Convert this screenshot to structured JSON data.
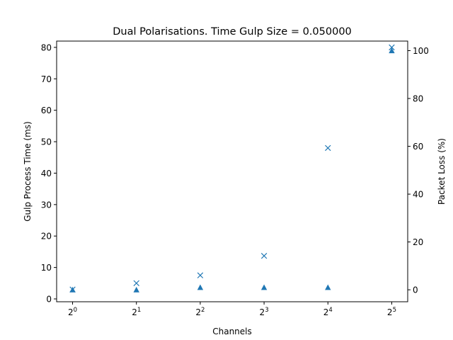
{
  "chart_data": {
    "type": "scatter",
    "title": "Dual Polarisations. Time Gulp Size = 0.050000",
    "xlabel": "Channels",
    "ylabel": "Gulp Process Time (ms)",
    "ylabel_right": "Packet Loss (%)",
    "x_scale": "log2",
    "x": [
      1,
      2,
      4,
      8,
      16,
      32
    ],
    "x_tick_labels": [
      {
        "base": "2",
        "exp": "0"
      },
      {
        "base": "2",
        "exp": "1"
      },
      {
        "base": "2",
        "exp": "2"
      },
      {
        "base": "2",
        "exp": "3"
      },
      {
        "base": "2",
        "exp": "4"
      },
      {
        "base": "2",
        "exp": "5"
      }
    ],
    "y_ticks": [
      "0",
      "10",
      "20",
      "30",
      "40",
      "50",
      "60",
      "70",
      "80"
    ],
    "y2_ticks": [
      "0",
      "20",
      "40",
      "60",
      "80",
      "100"
    ],
    "ylim": [
      -0.9,
      82
    ],
    "y2lim": [
      -5,
      104
    ],
    "grid": false,
    "color": "#1f77b4",
    "series": [
      {
        "axis": "left",
        "marker": "x",
        "values": [
          3.0,
          5.0,
          7.5,
          13.7,
          48.0,
          80.0
        ]
      },
      {
        "axis": "right",
        "marker": "triangle",
        "values": [
          0,
          0,
          1,
          1,
          1,
          100
        ]
      }
    ]
  }
}
